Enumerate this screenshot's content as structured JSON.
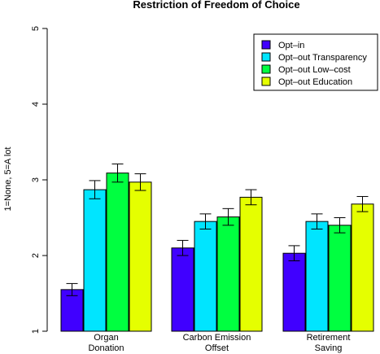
{
  "chart_data": {
    "type": "bar",
    "title": "Restriction of Freedom of Choice",
    "ylabel": "1=None, 5=A lot",
    "xlabel": "",
    "ylim": [
      1,
      5
    ],
    "yticks": [
      "1",
      "2",
      "3",
      "4",
      "5"
    ],
    "categories": [
      [
        "Organ",
        "Donation"
      ],
      [
        "Carbon Emission",
        "Offset"
      ],
      [
        "Retirement",
        "Saving"
      ]
    ],
    "legend_position": "top-right",
    "grid": false,
    "error_bars": true,
    "series": [
      {
        "name": "Opt–in",
        "color": "#4000ff",
        "values": [
          1.55,
          2.1,
          2.03
        ],
        "err": [
          0.08,
          0.1,
          0.1
        ]
      },
      {
        "name": "Opt–out Transparency",
        "color": "#00e5ff",
        "values": [
          2.87,
          2.45,
          2.45
        ],
        "err": [
          0.12,
          0.1,
          0.1
        ]
      },
      {
        "name": "Opt–out Low–cost",
        "color": "#00ff40",
        "values": [
          3.09,
          2.51,
          2.4
        ],
        "err": [
          0.12,
          0.11,
          0.1
        ]
      },
      {
        "name": "Opt–out Education",
        "color": "#e5ff00",
        "values": [
          2.97,
          2.77,
          2.68
        ],
        "err": [
          0.11,
          0.1,
          0.1
        ]
      }
    ]
  }
}
